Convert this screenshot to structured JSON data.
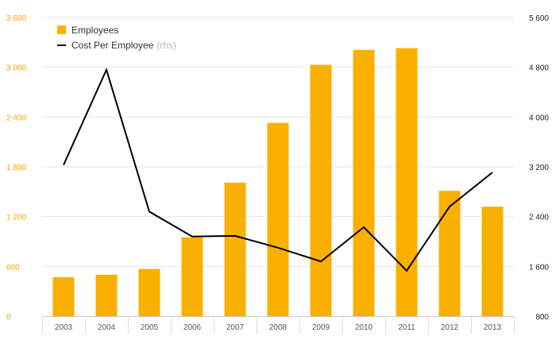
{
  "colors": {
    "bar": "#f9b000",
    "line": "#000000",
    "grid": "#e6e6e6",
    "left_axis_text": "#f0a500"
  },
  "legend": {
    "bar_label": "Employees",
    "line_label": "Cost Per Employee",
    "line_note": "(rhs)"
  },
  "chart_data": {
    "type": "bar",
    "categories": [
      "2003",
      "2004",
      "2005",
      "2006",
      "2007",
      "2008",
      "2009",
      "2010",
      "2011",
      "2012",
      "2013"
    ],
    "series": [
      {
        "name": "Employees",
        "type": "bar",
        "axis": "left",
        "values": [
          470,
          500,
          570,
          950,
          1610,
          2330,
          3030,
          3210,
          3230,
          1510,
          1320
        ]
      },
      {
        "name": "Cost Per Employee",
        "type": "line",
        "axis": "right",
        "values": [
          3230,
          4760,
          2480,
          2080,
          2090,
          1900,
          1680,
          2230,
          1530,
          2560,
          3110
        ]
      }
    ],
    "y_left": {
      "lim": [
        0,
        3600
      ],
      "ticks": [
        "0",
        "600",
        "1 200",
        "1 800",
        "2 400",
        "3 000",
        "3 600"
      ],
      "tick_values": [
        0,
        600,
        1200,
        1800,
        2400,
        3000,
        3600
      ]
    },
    "y_right": {
      "lim": [
        800,
        5600
      ],
      "ticks": [
        "800",
        "1 600",
        "2 400",
        "3 200",
        "4 000",
        "4 800",
        "5 600"
      ],
      "tick_values": [
        800,
        1600,
        2400,
        3200,
        4000,
        4800,
        5600
      ]
    },
    "grid": true,
    "legend_position": "top-left"
  }
}
